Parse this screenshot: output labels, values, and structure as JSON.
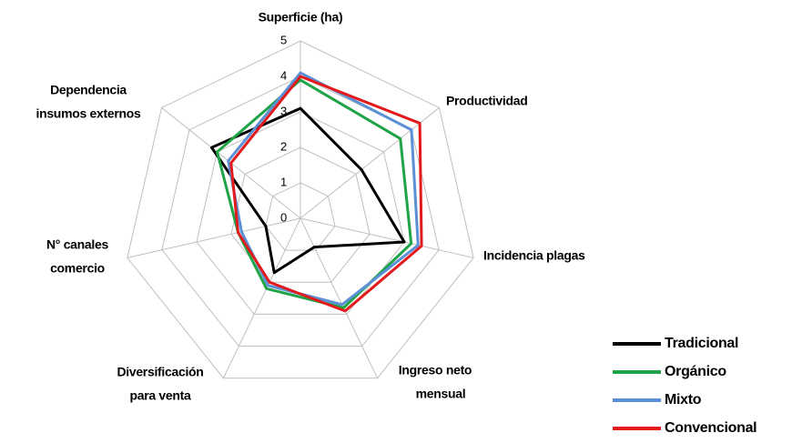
{
  "chart_data": {
    "type": "radar",
    "categories": [
      [
        "Superficie (ha)"
      ],
      [
        "Productividad"
      ],
      [
        "Incidencia  plagas"
      ],
      [
        "Ingreso neto",
        "mensual"
      ],
      [
        "Diversificación",
        "para  venta"
      ],
      [
        "N° canales",
        "comercio"
      ],
      [
        "Dependencia",
        "insumos externos"
      ]
    ],
    "ylim": [
      0,
      5
    ],
    "yticks": [
      0,
      1,
      2,
      3,
      4,
      5
    ],
    "grid": true,
    "legend": "lower right",
    "series": [
      {
        "name": "Tradicional",
        "color": "#000000",
        "values": [
          3.1,
          2.2,
          3.0,
          0.9,
          1.7,
          1.0,
          3.2
        ]
      },
      {
        "name": "Orgánico",
        "color": "#1fa347",
        "values": [
          3.9,
          3.6,
          3.2,
          2.8,
          2.2,
          1.8,
          3.0
        ]
      },
      {
        "name": "Mixto",
        "color": "#5b8fd6",
        "values": [
          4.1,
          4.0,
          3.4,
          2.7,
          2.1,
          1.7,
          2.6
        ]
      },
      {
        "name": "Convencional",
        "color": "#e31a1c",
        "values": [
          4.0,
          4.3,
          3.5,
          2.9,
          2.0,
          1.8,
          2.5
        ]
      }
    ]
  }
}
